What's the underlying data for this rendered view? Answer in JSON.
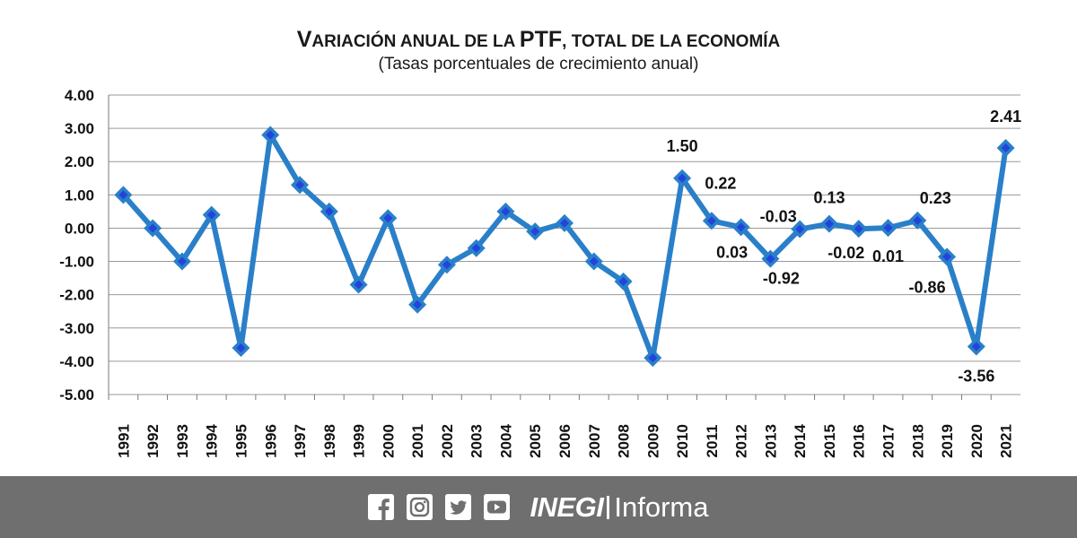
{
  "chart_data": {
    "type": "line",
    "title_parts": [
      {
        "text": "V",
        "size": "large"
      },
      {
        "text": "ARIACIÓN ANUAL DE LA ",
        "size": "small"
      },
      {
        "text": "PTF",
        "size": "large"
      },
      {
        "text": ", TOTAL DE LA ECONOMÍA",
        "size": "small"
      }
    ],
    "subtitle": "(Tasas porcentuales de crecimiento anual)",
    "categories": [
      "1991",
      "1992",
      "1993",
      "1994",
      "1995",
      "1996",
      "1997",
      "1998",
      "1999",
      "2000",
      "2001",
      "2002",
      "2003",
      "2004",
      "2005",
      "2006",
      "2007",
      "2008",
      "2009",
      "2010",
      "2011",
      "2012",
      "2013",
      "2014",
      "2015",
      "2016",
      "2017",
      "2018",
      "2019",
      "2020",
      "2021"
    ],
    "series": [
      {
        "values": [
          1.0,
          0.0,
          -1.0,
          0.4,
          -3.6,
          2.8,
          1.3,
          0.5,
          -1.7,
          0.3,
          -2.3,
          -1.1,
          -0.6,
          0.5,
          -0.1,
          0.15,
          -1.0,
          -1.6,
          -3.9,
          1.5,
          0.22,
          0.03,
          -0.92,
          -0.03,
          0.13,
          -0.02,
          0.01,
          0.23,
          -0.86,
          -3.56,
          2.41
        ]
      }
    ],
    "ylim": [
      -5,
      4
    ],
    "yticks": [
      "4.00",
      "3.00",
      "2.00",
      "1.00",
      "0.00",
      "-1.00",
      "-2.00",
      "-3.00",
      "-4.00",
      "-5.00"
    ],
    "grid": true,
    "data_labels": [
      {
        "category": "2010",
        "text": "1.50"
      },
      {
        "category": "2011",
        "text": "0.22"
      },
      {
        "category": "2012",
        "text": "0.03"
      },
      {
        "category": "2013",
        "text": "-0.92"
      },
      {
        "category": "2014",
        "text": "-0.03"
      },
      {
        "category": "2015",
        "text": "0.13"
      },
      {
        "category": "2016",
        "text": "-0.02"
      },
      {
        "category": "2017",
        "text": "0.01"
      },
      {
        "category": "2018",
        "text": "0.23"
      },
      {
        "category": "2019",
        "text": "-0.86"
      },
      {
        "category": "2020",
        "text": "-3.56"
      },
      {
        "category": "2021",
        "text": "2.41"
      }
    ],
    "line_color": "#2a7fc9",
    "marker_color": "#2244dd"
  },
  "footer": {
    "icons": [
      "facebook-icon",
      "instagram-icon",
      "twitter-icon",
      "youtube-icon"
    ],
    "brand_bold": "INEGI",
    "brand_light": "Informa",
    "background": "#6f6f6f"
  }
}
